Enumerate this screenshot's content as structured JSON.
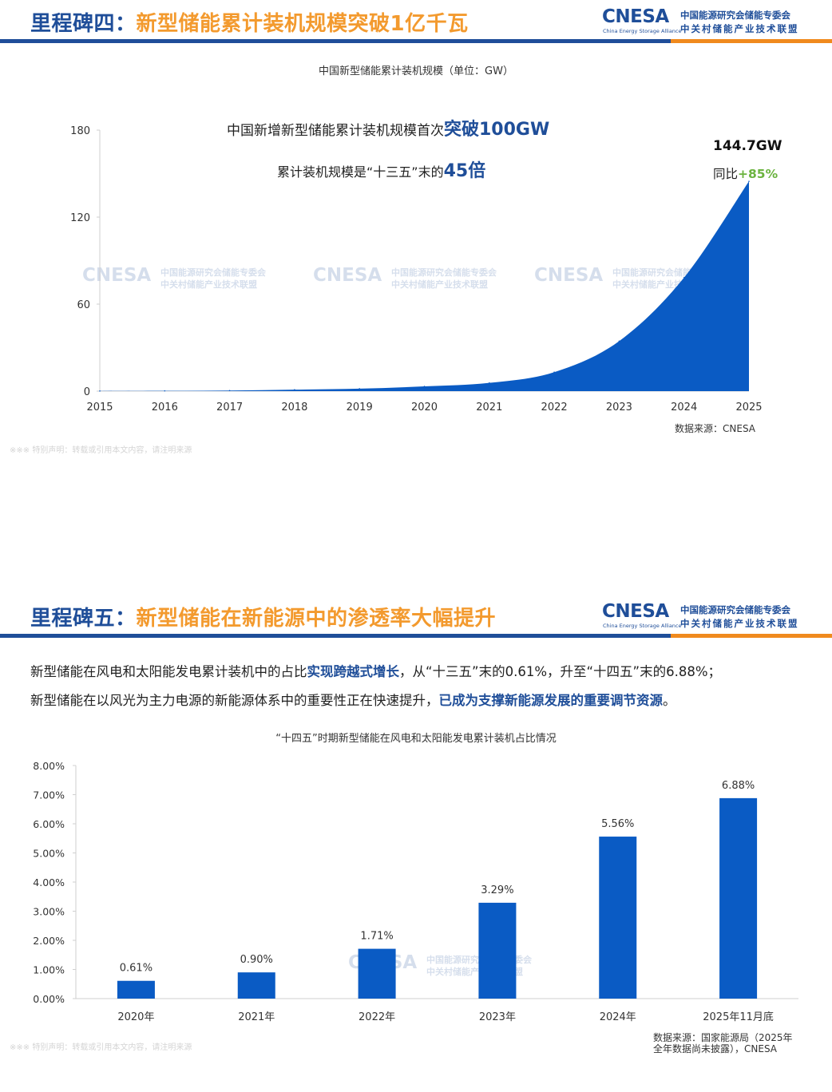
{
  "section4": {
    "title_prefix": "里程碑四",
    "title_sep": "：",
    "title_main": "新型储能累计装机规模突破1亿千瓦",
    "chart_title": "中国新型储能累计装机规模（单位：GW）",
    "annotation_line1_text": "中国新增新型储能累计装机规模首次",
    "annotation_line1_highlight": "突破100GW",
    "annotation_line2_text": "累计装机规模是“十三五”末的",
    "annotation_line2_highlight": "45倍",
    "last_value_label": "144.7GW",
    "yoy_label": "同比",
    "yoy_value": "+85%",
    "source": "数据来源：CNESA",
    "disclaimer": "※※※ 特别声明：转载或引用本文内容，请注明来源"
  },
  "section5": {
    "title_prefix": "里程碑五",
    "title_sep": "：",
    "title_main": "新型储能在新能源中的渗透率大幅提升",
    "text_line1_a": "新型储能在风电和太阳能发电累计装机中的占比",
    "text_line1_hl": "实现跨越式增长",
    "text_line1_b": "，从“十三五”末的0.61%，升至“十四五”末的6.88%；",
    "text_line2_a": "新型储能在以风光为主力电源的新能源体系中的重要性正在快速提升，",
    "text_line2_hl": "已成为支撑新能源发展的重要调节资源",
    "text_line2_b": "。",
    "chart_title": "“十四五”时期新型储能在风电和太阳能发电累计装机占比情况",
    "source_line1": "数据来源：国家能源局（2025年",
    "source_line2": "全年数据尚未披露），CNESA",
    "disclaimer": "※※※ 特别声明：转载或引用本文内容，请注明来源"
  },
  "logo": {
    "mark": "CNESA",
    "sub": "China Energy Storage Alliance",
    "cn_line1": "中国能源研究会储能专委会",
    "cn_line2": "中关村储能产业技术联盟"
  },
  "colors": {
    "brand_blue": "#1f4e99",
    "chart_blue": "#0a5bc4",
    "accent_orange": "#f39a2e",
    "rule_orange": "#f08a1e",
    "yoy_green": "#6bb33f"
  },
  "chart_data": [
    {
      "type": "area",
      "title": "中国新型储能累计装机规模（单位：GW）",
      "x": [
        "2015",
        "2016",
        "2017",
        "2018",
        "2019",
        "2020",
        "2021",
        "2022",
        "2023",
        "2024",
        "2025"
      ],
      "series": [
        {
          "values": [
            0.1,
            0.2,
            0.4,
            1.0,
            1.7,
            3.3,
            5.7,
            13.1,
            34.5,
            78.3,
            144.7
          ]
        }
      ],
      "yticks": [
        "0",
        "60",
        "120",
        "180"
      ],
      "ylim": [
        0,
        180
      ],
      "grid": false,
      "legend": "none"
    },
    {
      "type": "bar",
      "title": "“十四五”时期新型储能在风电和太阳能发电累计装机占比情况",
      "categories": [
        "2020年",
        "2021年",
        "2022年",
        "2023年",
        "2024年",
        "2025年11月底"
      ],
      "values": [
        0.61,
        0.9,
        1.71,
        3.29,
        5.56,
        6.88
      ],
      "value_labels": [
        "0.61%",
        "0.90%",
        "1.71%",
        "3.29%",
        "5.56%",
        "6.88%"
      ],
      "yticks": [
        "0.00%",
        "1.00%",
        "2.00%",
        "3.00%",
        "4.00%",
        "5.00%",
        "6.00%",
        "7.00%",
        "8.00%"
      ],
      "ylim": [
        0,
        8
      ],
      "grid": false,
      "legend": "none"
    }
  ]
}
